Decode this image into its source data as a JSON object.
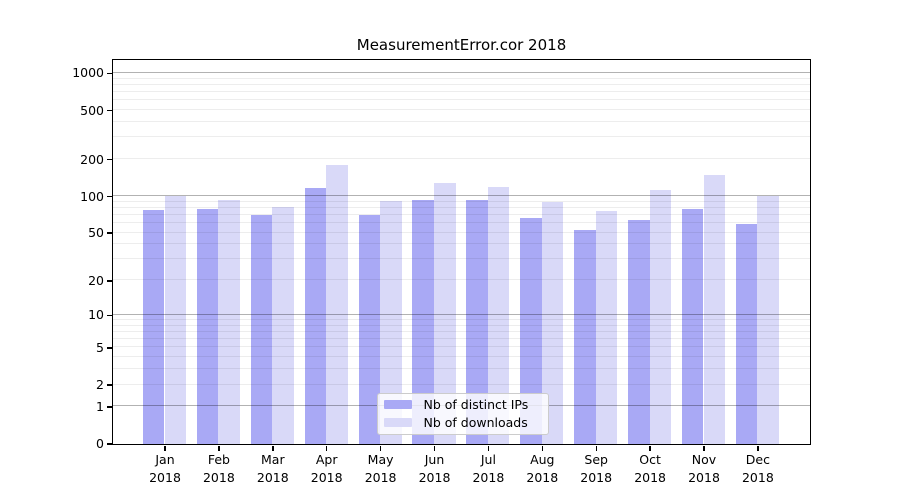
{
  "chart_data": {
    "type": "bar",
    "title": "MeasurementError.cor 2018",
    "x_year": "2018",
    "categories": [
      "Jan",
      "Feb",
      "Mar",
      "Apr",
      "May",
      "Jun",
      "Jul",
      "Aug",
      "Sep",
      "Oct",
      "Nov",
      "Dec"
    ],
    "series": [
      {
        "name": "Nb of distinct IPs",
        "color": "#a9a9f5",
        "values": [
          77,
          79,
          70,
          117,
          70,
          92,
          92,
          66,
          53,
          64,
          79,
          59
        ]
      },
      {
        "name": "Nb of downloads",
        "color": "#d9d9f8",
        "values": [
          100,
          92,
          82,
          180,
          91,
          128,
          118,
          89,
          75,
          113,
          148,
          100
        ]
      }
    ],
    "y_scale": "log10(value+1)",
    "ylim": [
      0,
      1270
    ],
    "y_tick_values": [
      0,
      1,
      2,
      5,
      10,
      20,
      50,
      100,
      200,
      500,
      1000
    ],
    "y_tick_labels": [
      "0",
      "1",
      "2",
      "5",
      "10",
      "20",
      "50",
      "100",
      "200",
      "500",
      "1000"
    ],
    "y_major_gridlines": [
      1,
      10,
      100,
      1000
    ],
    "y_minor_gridlines": [
      2,
      3,
      4,
      5,
      6,
      7,
      8,
      9,
      20,
      30,
      40,
      50,
      60,
      70,
      80,
      90,
      200,
      300,
      400,
      500,
      600,
      700,
      800,
      900
    ],
    "grid": "on",
    "legend_position": "lower center inside plot",
    "colors": {
      "background": "#ffffff",
      "axis": "#000000",
      "major_grid": "rgba(0,0,0,0.30)",
      "minor_grid": "rgba(0,0,0,0.07)",
      "legend_border": "#cccccc"
    }
  }
}
